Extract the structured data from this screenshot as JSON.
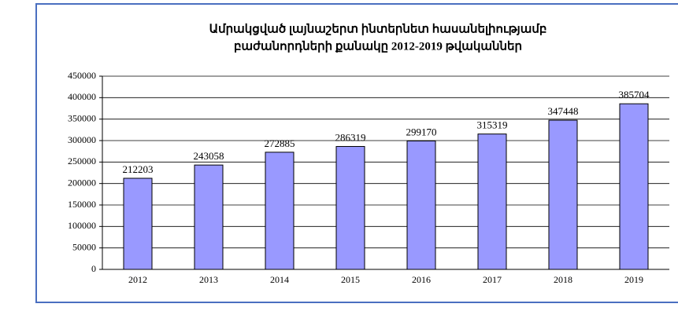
{
  "chart_data": {
    "type": "bar",
    "title": [
      "Ամրակցված լայնաշերտ ինտերնետ հասանելիությամբ",
      "բաժանորդների քանակը 2012-2019 թվականներ"
    ],
    "categories": [
      "2012",
      "2013",
      "2014",
      "2015",
      "2016",
      "2017",
      "2018",
      "2019"
    ],
    "values": [
      212203,
      243058,
      272885,
      286319,
      299170,
      315319,
      347448,
      385704
    ],
    "color": "#9999ff",
    "ylim": [
      0,
      450000
    ],
    "yticks": [
      0,
      50000,
      100000,
      150000,
      200000,
      250000,
      300000,
      350000,
      400000,
      450000
    ],
    "grid": true
  }
}
